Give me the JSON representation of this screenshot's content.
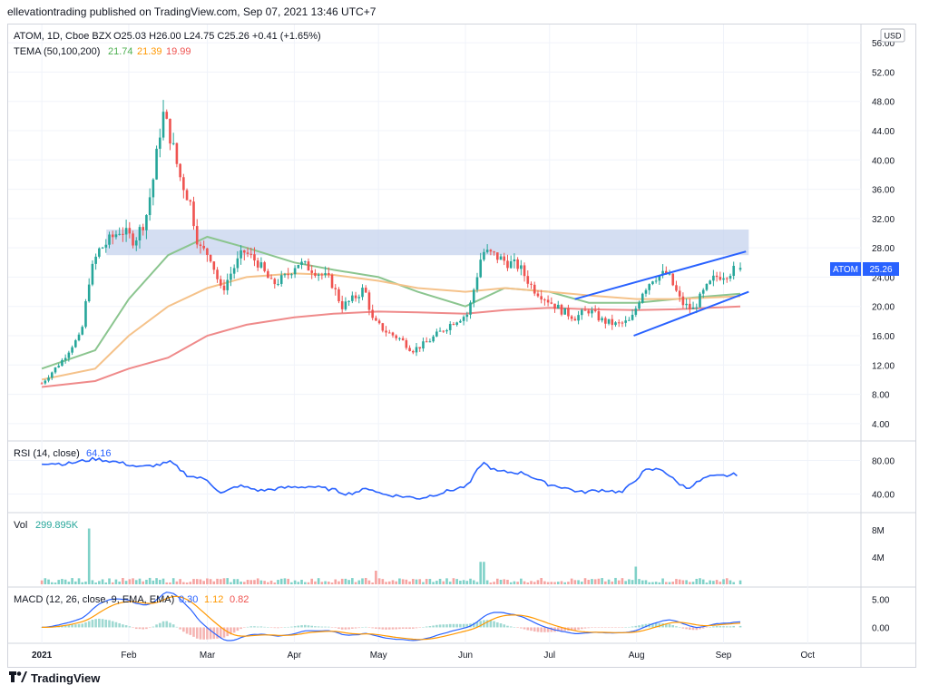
{
  "header": {
    "publisher": "ellevationtrading published on TradingView.com, Sep 07, 2021 13:46 UTC+7"
  },
  "legend": {
    "symbol": "ATOM, 1D, Cboe BZX",
    "ohlc": "O25.03  H26.00  L24.75  C25.26  +0.41 (+1.65%)",
    "tema_label": "TEMA (50,100,200)",
    "tema_values": [
      "21.74",
      "21.39",
      "19.99"
    ],
    "rsi_label": "RSI (14, close)",
    "rsi_value": "64.16",
    "vol_label": "Vol",
    "vol_value": "299.895K",
    "macd_label": "MACD (12, 26, close, 9, EMA, EMA)",
    "macd_values": [
      "0.30",
      "1.12",
      "0.82"
    ]
  },
  "currency": "USD",
  "price_badge": {
    "symbol": "ATOM",
    "value": "25.26"
  },
  "price_axis_ticks": [
    "56.00",
    "52.00",
    "48.00",
    "44.00",
    "40.00",
    "36.00",
    "32.00",
    "28.00",
    "24.00",
    "20.00",
    "16.00",
    "12.00",
    "8.00",
    "4.00"
  ],
  "rsi_axis_ticks": [
    "80.00",
    "40.00"
  ],
  "vol_axis_ticks": [
    "8M",
    "4M"
  ],
  "macd_axis_ticks": [
    "5.00",
    "0.00"
  ],
  "time_axis": [
    "2021",
    "Feb",
    "Mar",
    "Apr",
    "May",
    "Jun",
    "Jul",
    "Aug",
    "Sep",
    "Oct"
  ],
  "footer": {
    "brand": "TradingView"
  },
  "colors": {
    "up": "#26a69a",
    "down": "#ef5350",
    "tema50": "#8bc58f",
    "tema100": "#f5c28a",
    "tema200": "#ef8a8a",
    "rsi": "#2962ff",
    "zone": "#c5d3ee",
    "trend": "#2962ff",
    "macd": "#2962ff",
    "signal": "#ff9800"
  },
  "chart_data": {
    "type": "candlestick",
    "symbol": "ATOM",
    "timeframe": "1D",
    "ylim": [
      2,
      58
    ],
    "last_ohlc": {
      "open": 25.03,
      "high": 26.0,
      "low": 24.75,
      "close": 25.26,
      "change": 0.41,
      "change_pct": 1.65
    },
    "close_path": [
      [
        "2021-01-01",
        9.5
      ],
      [
        "2021-01-08",
        12.5
      ],
      [
        "2021-01-12",
        14.8
      ],
      [
        "2021-01-15",
        16.0
      ],
      [
        "2021-01-18",
        24.0
      ],
      [
        "2021-01-21",
        27.5
      ],
      [
        "2021-01-25",
        29.0
      ],
      [
        "2021-01-29",
        30.5
      ],
      [
        "2021-02-03",
        29.0
      ],
      [
        "2021-02-07",
        32.0
      ],
      [
        "2021-02-10",
        38.0
      ],
      [
        "2021-02-13",
        46.5
      ],
      [
        "2021-02-16",
        43.0
      ],
      [
        "2021-02-19",
        38.0
      ],
      [
        "2021-02-23",
        34.0
      ],
      [
        "2021-02-26",
        28.0
      ],
      [
        "2021-03-02",
        27.0
      ],
      [
        "2021-03-06",
        22.0
      ],
      [
        "2021-03-10",
        25.0
      ],
      [
        "2021-03-14",
        27.5
      ],
      [
        "2021-03-19",
        26.0
      ],
      [
        "2021-03-24",
        23.0
      ],
      [
        "2021-03-29",
        24.0
      ],
      [
        "2021-04-02",
        26.0
      ],
      [
        "2021-04-08",
        25.0
      ],
      [
        "2021-04-14",
        23.5
      ],
      [
        "2021-04-18",
        20.0
      ],
      [
        "2021-04-22",
        21.0
      ],
      [
        "2021-04-26",
        22.5
      ],
      [
        "2021-04-29",
        18.0
      ],
      [
        "2021-05-04",
        16.5
      ],
      [
        "2021-05-09",
        15.5
      ],
      [
        "2021-05-13",
        14.0
      ],
      [
        "2021-05-18",
        15.0
      ],
      [
        "2021-05-23",
        16.5
      ],
      [
        "2021-05-28",
        18.0
      ],
      [
        "2021-06-02",
        19.0
      ],
      [
        "2021-06-05",
        24.0
      ],
      [
        "2021-06-07",
        27.5
      ],
      [
        "2021-06-11",
        27.0
      ],
      [
        "2021-06-16",
        26.0
      ],
      [
        "2021-06-20",
        25.5
      ],
      [
        "2021-06-25",
        22.5
      ],
      [
        "2021-06-30",
        21.0
      ],
      [
        "2021-07-05",
        19.5
      ],
      [
        "2021-07-10",
        18.5
      ],
      [
        "2021-07-15",
        19.5
      ],
      [
        "2021-07-20",
        18.0
      ],
      [
        "2021-07-25",
        17.5
      ],
      [
        "2021-07-30",
        18.0
      ],
      [
        "2021-08-03",
        22.0
      ],
      [
        "2021-08-07",
        24.0
      ],
      [
        "2021-08-12",
        24.5
      ],
      [
        "2021-08-17",
        20.5
      ],
      [
        "2021-08-21",
        19.5
      ],
      [
        "2021-08-25",
        22.0
      ],
      [
        "2021-08-29",
        24.0
      ],
      [
        "2021-09-02",
        24.5
      ],
      [
        "2021-09-05",
        25.0
      ],
      [
        "2021-09-07",
        25.26
      ]
    ],
    "tema": [
      {
        "name": "50",
        "last": 21.74,
        "path": [
          [
            "2021-01-01",
            11.5
          ],
          [
            "2021-01-20",
            14.0
          ],
          [
            "2021-02-01",
            21.0
          ],
          [
            "2021-02-15",
            27.0
          ],
          [
            "2021-03-01",
            29.5
          ],
          [
            "2021-03-15",
            28.0
          ],
          [
            "2021-04-01",
            26.0
          ],
          [
            "2021-04-15",
            25.0
          ],
          [
            "2021-05-01",
            24.0
          ],
          [
            "2021-05-15",
            22.0
          ],
          [
            "2021-06-01",
            20.0
          ],
          [
            "2021-06-15",
            22.5
          ],
          [
            "2021-07-01",
            22.0
          ],
          [
            "2021-07-15",
            20.5
          ],
          [
            "2021-08-01",
            20.5
          ],
          [
            "2021-08-15",
            21.0
          ],
          [
            "2021-09-07",
            21.74
          ]
        ]
      },
      {
        "name": "100",
        "last": 21.39,
        "path": [
          [
            "2021-01-01",
            10.0
          ],
          [
            "2021-01-20",
            11.5
          ],
          [
            "2021-02-01",
            16.0
          ],
          [
            "2021-02-15",
            20.0
          ],
          [
            "2021-03-01",
            22.5
          ],
          [
            "2021-03-15",
            24.0
          ],
          [
            "2021-04-01",
            24.5
          ],
          [
            "2021-04-15",
            24.3
          ],
          [
            "2021-05-01",
            23.5
          ],
          [
            "2021-05-15",
            22.5
          ],
          [
            "2021-06-01",
            22.0
          ],
          [
            "2021-06-15",
            22.5
          ],
          [
            "2021-07-01",
            22.0
          ],
          [
            "2021-07-15",
            21.5
          ],
          [
            "2021-08-01",
            21.0
          ],
          [
            "2021-08-15",
            21.0
          ],
          [
            "2021-09-07",
            21.39
          ]
        ]
      },
      {
        "name": "200",
        "last": 19.99,
        "path": [
          [
            "2021-01-01",
            9.0
          ],
          [
            "2021-01-20",
            9.8
          ],
          [
            "2021-02-01",
            11.5
          ],
          [
            "2021-02-15",
            13.0
          ],
          [
            "2021-03-01",
            16.0
          ],
          [
            "2021-03-15",
            17.5
          ],
          [
            "2021-04-01",
            18.5
          ],
          [
            "2021-04-15",
            19.0
          ],
          [
            "2021-05-01",
            19.3
          ],
          [
            "2021-05-15",
            19.2
          ],
          [
            "2021-06-01",
            19.0
          ],
          [
            "2021-06-15",
            19.5
          ],
          [
            "2021-07-01",
            19.8
          ],
          [
            "2021-07-15",
            19.6
          ],
          [
            "2021-08-01",
            19.5
          ],
          [
            "2021-08-15",
            19.6
          ],
          [
            "2021-09-07",
            19.99
          ]
        ]
      }
    ],
    "resistance_zone": {
      "x": [
        "2021-01-24",
        "2021-09-10"
      ],
      "y": [
        27.0,
        30.5
      ]
    },
    "trendlines": [
      {
        "x": [
          "2021-07-10",
          "2021-09-09"
        ],
        "y": [
          21.0,
          27.5
        ]
      },
      {
        "x": [
          "2021-07-31",
          "2021-09-10"
        ],
        "y": [
          16.0,
          22.0
        ]
      }
    ],
    "rsi": {
      "ylim": [
        20,
        100
      ],
      "last": 64.16,
      "path": [
        [
          "2021-01-01",
          77
        ],
        [
          "2021-01-10",
          76
        ],
        [
          "2021-01-20",
          82
        ],
        [
          "2021-01-28",
          78
        ],
        [
          "2021-02-05",
          72
        ],
        [
          "2021-02-12",
          75
        ],
        [
          "2021-02-16",
          78
        ],
        [
          "2021-02-22",
          62
        ],
        [
          "2021-03-01",
          57
        ],
        [
          "2021-03-06",
          40
        ],
        [
          "2021-03-12",
          50
        ],
        [
          "2021-03-20",
          44
        ],
        [
          "2021-03-30",
          48
        ],
        [
          "2021-04-07",
          49
        ],
        [
          "2021-04-15",
          45
        ],
        [
          "2021-04-20",
          40
        ],
        [
          "2021-04-28",
          47
        ],
        [
          "2021-05-02",
          40
        ],
        [
          "2021-05-10",
          37
        ],
        [
          "2021-05-16",
          35
        ],
        [
          "2021-05-24",
          42
        ],
        [
          "2021-06-02",
          50
        ],
        [
          "2021-06-07",
          78
        ],
        [
          "2021-06-12",
          67
        ],
        [
          "2021-06-22",
          65
        ],
        [
          "2021-06-30",
          52
        ],
        [
          "2021-07-06",
          48
        ],
        [
          "2021-07-12",
          42
        ],
        [
          "2021-07-20",
          45
        ],
        [
          "2021-07-27",
          42
        ],
        [
          "2021-08-04",
          68
        ],
        [
          "2021-08-10",
          70
        ],
        [
          "2021-08-15",
          55
        ],
        [
          "2021-08-19",
          47
        ],
        [
          "2021-08-26",
          60
        ],
        [
          "2021-09-02",
          62
        ],
        [
          "2021-09-07",
          64
        ]
      ]
    },
    "volume": {
      "ylim": [
        0,
        10000000
      ],
      "last": 299895,
      "spikes": [
        [
          "2021-01-18",
          8200000
        ],
        [
          "2021-06-07",
          3300000
        ],
        [
          "2021-08-01",
          2600000
        ],
        [
          "2021-04-30",
          2000000
        ]
      ]
    },
    "macd": {
      "ylim": [
        -2.5,
        6.5
      ],
      "macd_last": 0.3,
      "signal_last": 1.12,
      "hist_last": 0.82
    }
  }
}
